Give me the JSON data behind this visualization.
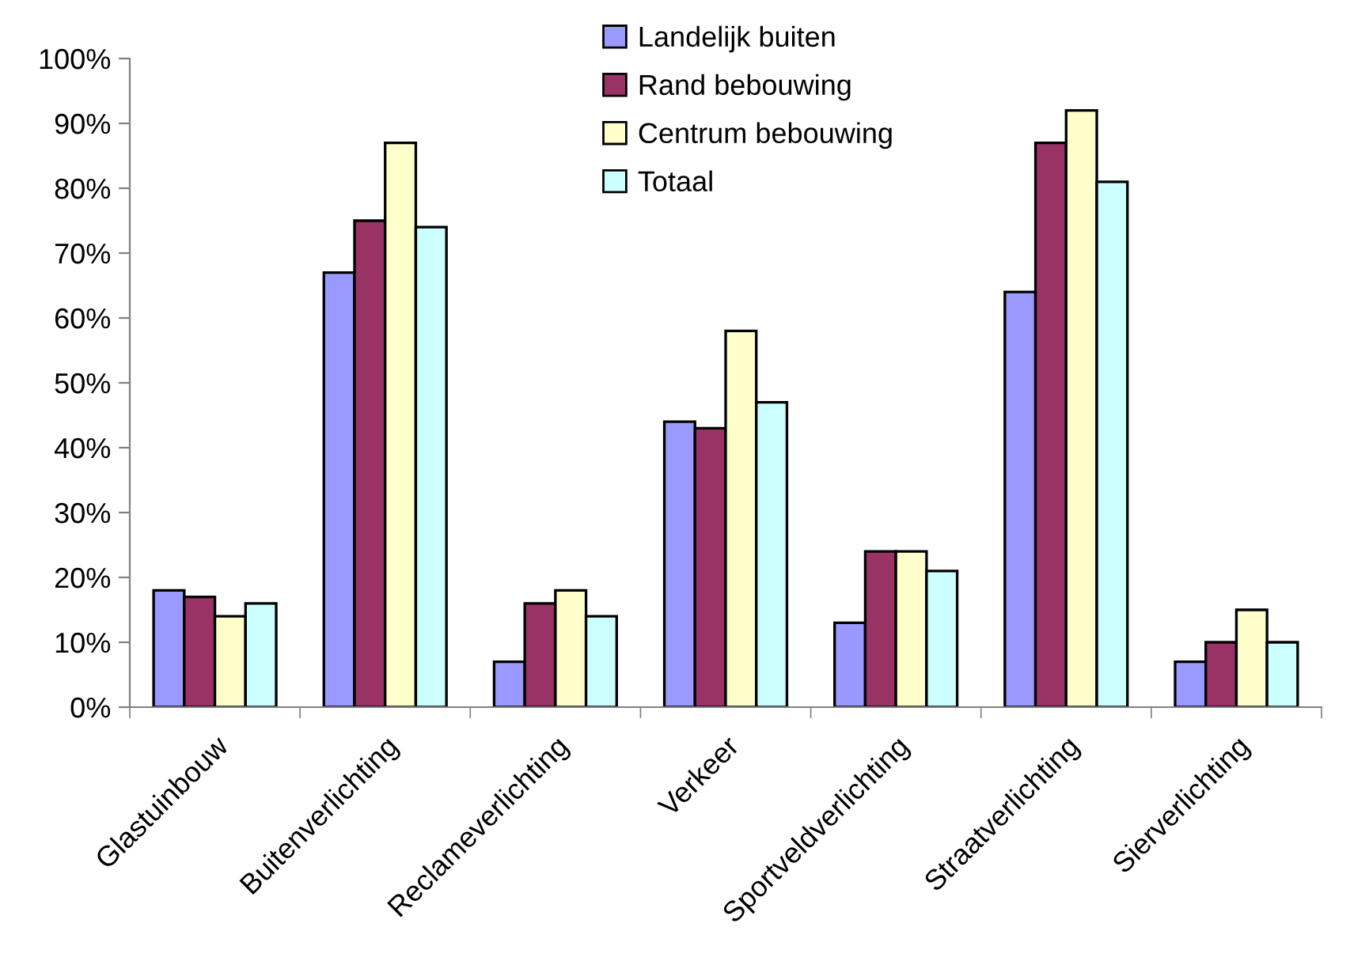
{
  "chart_data": {
    "type": "bar",
    "categories": [
      "Glastuinbouw",
      "Buitenverlichting",
      "Reclameverlichting",
      "Verkeer",
      "Sportveldverlichting",
      "Straatverlichting",
      "Sierverlichting"
    ],
    "series": [
      {
        "name": "Landelijk buiten",
        "color": "#9999ff",
        "values": [
          18,
          67,
          7,
          44,
          13,
          64,
          7
        ]
      },
      {
        "name": "Rand bebouwing",
        "color": "#993366",
        "values": [
          17,
          75,
          16,
          43,
          24,
          87,
          10
        ]
      },
      {
        "name": "Centrum bebouwing",
        "color": "#ffffcc",
        "values": [
          14,
          87,
          18,
          58,
          24,
          92,
          15
        ]
      },
      {
        "name": "Totaal",
        "color": "#ccffff",
        "values": [
          16,
          74,
          14,
          47,
          21,
          81,
          10
        ]
      }
    ],
    "ylim": [
      0,
      100
    ],
    "yticks": [
      {
        "value": 0,
        "label": "0%"
      },
      {
        "value": 10,
        "label": "10%"
      },
      {
        "value": 20,
        "label": "20%"
      },
      {
        "value": 30,
        "label": "30%"
      },
      {
        "value": 40,
        "label": "40%"
      },
      {
        "value": 50,
        "label": "50%"
      },
      {
        "value": 60,
        "label": "60%"
      },
      {
        "value": 70,
        "label": "70%"
      },
      {
        "value": 80,
        "label": "80%"
      },
      {
        "value": 90,
        "label": "90%"
      },
      {
        "value": 100,
        "label": "100%"
      }
    ],
    "grid": false,
    "legend": "top right"
  }
}
